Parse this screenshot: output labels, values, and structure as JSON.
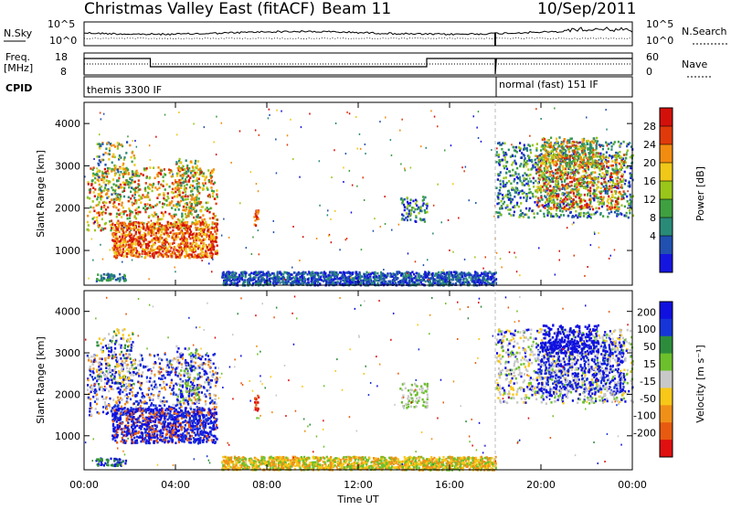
{
  "header": {
    "title": "Christmas Valley East (fitACF)",
    "beam": "Beam 11",
    "date": "10/Sep/2011"
  },
  "panels": {
    "nsky_label": "N.Sky",
    "nsearch_label": "N.Search",
    "nsky_ticks": [
      "10^5",
      "10^0"
    ],
    "freq_label_line1": "Freq.",
    "freq_label_line2": "[MHz]",
    "freq_ticks": [
      "18",
      "8"
    ],
    "nave_ticks": [
      "60",
      "0"
    ],
    "nave_label": "Nave",
    "cpid_label": "CPID",
    "cpid_segments": [
      "themis 3300 IF",
      "normal (fast) 151 IF"
    ]
  },
  "chart_data": [
    {
      "type": "heatmap",
      "name": "power",
      "ylabel": "Slant Range [km]",
      "xlabel": "Time UT",
      "x_ticks": [
        "00:00",
        "04:00",
        "08:00",
        "12:00",
        "16:00",
        "20:00",
        "00:00"
      ],
      "xlim_hours": [
        0,
        24
      ],
      "ylim_km": [
        180,
        4500
      ],
      "y_ticks": [
        1000,
        2000,
        3000,
        4000
      ],
      "colorbar": {
        "label": "Power [dB]",
        "ticks": [
          4,
          8,
          12,
          16,
          20,
          24,
          28
        ],
        "colors": [
          "#1515e0",
          "#2050b0",
          "#2a8a78",
          "#3fa040",
          "#9ac61a",
          "#f0c818",
          "#f28c10",
          "#e03a0a",
          "#d4100a"
        ]
      }
    },
    {
      "type": "heatmap",
      "name": "velocity",
      "ylabel": "Slant Range [km]",
      "xlabel": "Time UT",
      "x_ticks": [
        "00:00",
        "04:00",
        "08:00",
        "12:00",
        "16:00",
        "20:00",
        "00:00"
      ],
      "xlim_hours": [
        0,
        24
      ],
      "ylim_km": [
        180,
        4500
      ],
      "y_ticks": [
        1000,
        2000,
        3000,
        4000
      ],
      "colorbar": {
        "label": "Velocity [m s⁻¹]",
        "ticks": [
          "200",
          "100",
          "50",
          "15",
          "-15",
          "-50",
          "-100",
          "-200"
        ],
        "colors": [
          "#1010e0",
          "#1535d8",
          "#2c8c3c",
          "#6cc02c",
          "#c8c8c8",
          "#f8c818",
          "#f09018",
          "#e85a10",
          "#e01010"
        ]
      }
    }
  ]
}
